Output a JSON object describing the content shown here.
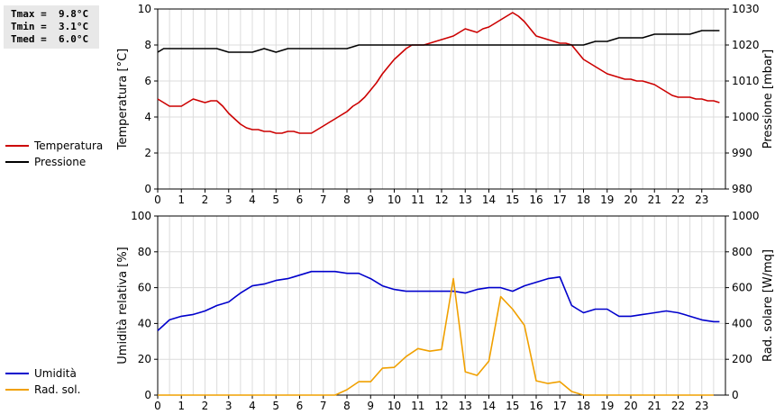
{
  "stats": {
    "tmax": "Tmax =  9.8°C",
    "tmin": "Tmin =  3.1°C",
    "tmed": "Tmed =  6.0°C"
  },
  "chart_data": [
    {
      "type": "line",
      "x_ticks": [
        "0",
        "1",
        "2",
        "3",
        "4",
        "5",
        "6",
        "7",
        "8",
        "9",
        "10",
        "11",
        "12",
        "13",
        "14",
        "15",
        "16",
        "17",
        "18",
        "19",
        "20",
        "21",
        "22",
        "23"
      ],
      "xlim": [
        0,
        24
      ],
      "ylabel_left": "Temperatura [°C]",
      "ylabel_right": "Pressione [mbar]",
      "ylim_left": [
        0,
        10
      ],
      "ylim_right": [
        980,
        1030
      ],
      "yticks_left": [
        0,
        2,
        4,
        6,
        8,
        10
      ],
      "yticks_right": [
        980,
        990,
        1000,
        1010,
        1020,
        1030
      ],
      "grid": true,
      "legend_position": "left",
      "series": [
        {
          "name": "Temperatura",
          "axis": "left",
          "color": "#cc0000",
          "x": [
            0,
            0.25,
            0.5,
            0.75,
            1,
            1.25,
            1.5,
            1.75,
            2,
            2.25,
            2.5,
            2.75,
            3,
            3.25,
            3.5,
            3.75,
            4,
            4.25,
            4.5,
            4.75,
            5,
            5.25,
            5.5,
            5.75,
            6,
            6.25,
            6.5,
            6.75,
            7,
            7.25,
            7.5,
            7.75,
            8,
            8.25,
            8.5,
            8.75,
            9,
            9.25,
            9.5,
            9.75,
            10,
            10.25,
            10.5,
            10.75,
            11,
            11.25,
            11.5,
            11.75,
            12,
            12.25,
            12.5,
            12.75,
            13,
            13.25,
            13.5,
            13.75,
            14,
            14.25,
            14.5,
            14.75,
            15,
            15.25,
            15.5,
            15.75,
            16,
            16.25,
            16.5,
            16.75,
            17,
            17.25,
            17.5,
            17.75,
            18,
            18.25,
            18.5,
            18.75,
            19,
            19.25,
            19.5,
            19.75,
            20,
            20.25,
            20.5,
            20.75,
            21,
            21.25,
            21.5,
            21.75,
            22,
            22.25,
            22.5,
            22.75,
            23,
            23.25,
            23.5,
            23.75
          ],
          "values": [
            5.0,
            4.8,
            4.6,
            4.6,
            4.6,
            4.8,
            5.0,
            4.9,
            4.8,
            4.9,
            4.9,
            4.6,
            4.2,
            3.9,
            3.6,
            3.4,
            3.3,
            3.3,
            3.2,
            3.2,
            3.1,
            3.1,
            3.2,
            3.2,
            3.1,
            3.1,
            3.1,
            3.3,
            3.5,
            3.7,
            3.9,
            4.1,
            4.3,
            4.6,
            4.8,
            5.1,
            5.5,
            5.9,
            6.4,
            6.8,
            7.2,
            7.5,
            7.8,
            8.0,
            8.0,
            8.0,
            8.1,
            8.2,
            8.3,
            8.4,
            8.5,
            8.7,
            8.9,
            8.8,
            8.7,
            8.9,
            9.0,
            9.2,
            9.4,
            9.6,
            9.8,
            9.6,
            9.3,
            8.9,
            8.5,
            8.4,
            8.3,
            8.2,
            8.1,
            8.1,
            8.0,
            7.6,
            7.2,
            7.0,
            6.8,
            6.6,
            6.4,
            6.3,
            6.2,
            6.1,
            6.1,
            6.0,
            6.0,
            5.9,
            5.8,
            5.6,
            5.4,
            5.2,
            5.1,
            5.1,
            5.1,
            5.0,
            5.0,
            4.9,
            4.9,
            4.8
          ]
        },
        {
          "name": "Pressione",
          "axis": "right",
          "color": "#000000",
          "x": [
            0,
            0.25,
            0.5,
            0.75,
            1,
            1.25,
            1.5,
            1.75,
            2,
            2.25,
            2.5,
            2.75,
            3,
            3.25,
            3.5,
            3.75,
            4,
            4.25,
            4.5,
            4.75,
            5,
            5.25,
            5.5,
            5.75,
            6,
            6.25,
            6.5,
            6.75,
            7,
            7.25,
            7.5,
            7.75,
            8,
            8.25,
            8.5,
            8.75,
            9,
            9.25,
            9.5,
            9.75,
            10,
            10.25,
            10.5,
            10.75,
            11,
            11.25,
            11.5,
            11.75,
            12,
            12.25,
            12.5,
            12.75,
            13,
            13.25,
            13.5,
            13.75,
            14,
            14.25,
            14.5,
            14.75,
            15,
            15.25,
            15.5,
            15.75,
            16,
            16.25,
            16.5,
            16.75,
            17,
            17.25,
            17.5,
            17.75,
            18,
            18.25,
            18.5,
            18.75,
            19,
            19.25,
            19.5,
            19.75,
            20,
            20.25,
            20.5,
            20.75,
            21,
            21.25,
            21.5,
            21.75,
            22,
            22.25,
            22.5,
            22.75,
            23,
            23.25,
            23.5,
            23.75
          ],
          "values": [
            1018,
            1019,
            1019,
            1019,
            1019,
            1019,
            1019,
            1019,
            1019,
            1019,
            1019,
            1018.5,
            1018,
            1018,
            1018,
            1018,
            1018,
            1018.5,
            1019,
            1018.5,
            1018,
            1018.5,
            1019,
            1019,
            1019,
            1019,
            1019,
            1019,
            1019,
            1019,
            1019,
            1019,
            1019,
            1019.5,
            1020,
            1020,
            1020,
            1020,
            1020,
            1020,
            1020,
            1020,
            1020,
            1020,
            1020,
            1020,
            1020,
            1020,
            1020,
            1020,
            1020,
            1020,
            1020,
            1020,
            1020,
            1020,
            1020,
            1020,
            1020,
            1020,
            1020,
            1020,
            1020,
            1020,
            1020,
            1020,
            1020,
            1020,
            1020,
            1020,
            1020,
            1020,
            1020,
            1020.5,
            1021,
            1021,
            1021,
            1021.5,
            1022,
            1022,
            1022,
            1022,
            1022,
            1022.5,
            1023,
            1023,
            1023,
            1023,
            1023,
            1023,
            1023,
            1023.5,
            1024,
            1024,
            1024,
            1024
          ]
        }
      ]
    },
    {
      "type": "line",
      "x_ticks": [
        "0",
        "1",
        "2",
        "3",
        "4",
        "5",
        "6",
        "7",
        "8",
        "9",
        "10",
        "11",
        "12",
        "13",
        "14",
        "15",
        "16",
        "17",
        "18",
        "19",
        "20",
        "21",
        "22",
        "23"
      ],
      "xlim": [
        0,
        24
      ],
      "ylabel_left": "Umidità relativa [%]",
      "ylabel_right": "Rad. solare [W/mq]",
      "ylim_left": [
        0,
        100
      ],
      "ylim_right": [
        0,
        1000
      ],
      "yticks_left": [
        0,
        20,
        40,
        60,
        80,
        100
      ],
      "yticks_right": [
        0,
        200,
        400,
        600,
        800,
        1000
      ],
      "grid": true,
      "legend_position": "left",
      "series": [
        {
          "name": "Umidità",
          "axis": "left",
          "color": "#0000cc",
          "x": [
            0,
            0.25,
            0.5,
            0.75,
            1,
            1.25,
            1.5,
            1.75,
            2,
            2.25,
            2.5,
            2.75,
            3,
            3.25,
            3.5,
            3.75,
            4,
            4.25,
            4.5,
            4.75,
            5,
            5.25,
            5.5,
            5.75,
            6,
            6.25,
            6.5,
            6.75,
            7,
            7.25,
            7.5,
            7.75,
            8,
            8.25,
            8.5,
            8.75,
            9,
            9.25,
            9.5,
            9.75,
            10,
            10.25,
            10.5,
            10.75,
            11,
            11.25,
            11.5,
            11.75,
            12,
            12.25,
            12.5,
            12.75,
            13,
            13.25,
            13.5,
            13.75,
            14,
            14.25,
            14.5,
            14.75,
            15,
            15.25,
            15.5,
            15.75,
            16,
            16.25,
            16.5,
            16.75,
            17,
            17.25,
            17.5,
            17.75,
            18,
            18.25,
            18.5,
            18.75,
            19,
            19.25,
            19.5,
            19.75,
            20,
            20.25,
            20.5,
            20.75,
            21,
            21.25,
            21.5,
            21.75,
            22,
            22.25,
            22.5,
            22.75,
            23,
            23.25,
            23.5,
            23.75
          ],
          "values": [
            36,
            39,
            42,
            43,
            44,
            44.5,
            45,
            46,
            47,
            48.5,
            50,
            51,
            52,
            54.5,
            57,
            59,
            61,
            61.5,
            62,
            63,
            64,
            64.5,
            65,
            66,
            67,
            68,
            69,
            69,
            69,
            69,
            69,
            68.5,
            68,
            68,
            68,
            66.5,
            65,
            63,
            61,
            60,
            59,
            58.5,
            58,
            58,
            58,
            58,
            58,
            58,
            58,
            58,
            58,
            57.5,
            57,
            58,
            59,
            59.5,
            60,
            60,
            60,
            59,
            58,
            59.5,
            61,
            62,
            63,
            64,
            65,
            65.5,
            66,
            58,
            50,
            48,
            46,
            47,
            48,
            48,
            48,
            46,
            44,
            44,
            44,
            44.5,
            45,
            45.5,
            46,
            46.5,
            47,
            46.5,
            46,
            45,
            44,
            43,
            42,
            41.5,
            41,
            41
          ]
        },
        {
          "name": "Rad. sol.",
          "axis": "right",
          "color": "#f0a000",
          "x": [
            0,
            0.5,
            1,
            1.5,
            2,
            2.5,
            3,
            3.5,
            4,
            4.5,
            5,
            5.5,
            6,
            6.5,
            7,
            7.5,
            8,
            8.5,
            9,
            9.5,
            10,
            10.5,
            11,
            11.5,
            12,
            12.5,
            13,
            13.5,
            14,
            14.5,
            15,
            15.5,
            16,
            16.5,
            17,
            17.5,
            18,
            18.5,
            19,
            19.5,
            20,
            20.5,
            21,
            21.5,
            22,
            22.5,
            23,
            23.5
          ],
          "values": [
            0,
            0,
            0,
            0,
            0,
            0,
            0,
            0,
            0,
            0,
            0,
            0,
            0,
            0,
            0,
            0,
            30,
            75,
            75,
            150,
            155,
            215,
            260,
            245,
            255,
            650,
            130,
            110,
            190,
            550,
            480,
            390,
            80,
            65,
            75,
            20,
            0,
            0,
            0,
            0,
            0,
            0,
            0,
            0,
            0,
            0,
            0,
            0
          ]
        }
      ]
    }
  ]
}
